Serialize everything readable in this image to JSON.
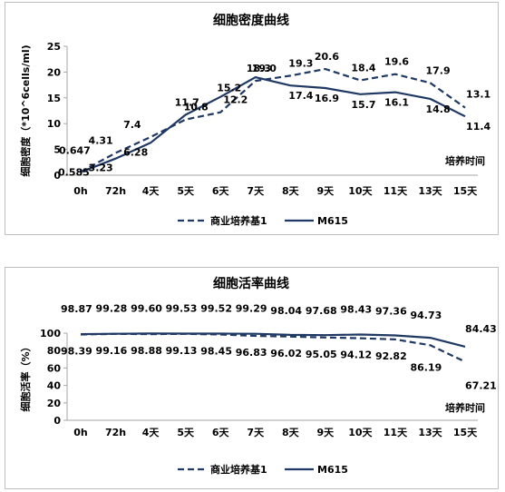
{
  "chart_data": [
    {
      "type": "line",
      "title": "细胞密度曲线",
      "ylabel": "细胞密度（*10^6cells/ml)",
      "xlabel": "培养时间",
      "categories": [
        "0h",
        "72h",
        "4天",
        "5天",
        "6天",
        "7天",
        "8天",
        "9天",
        "10天",
        "11天",
        "13天",
        "15天"
      ],
      "ylim": [
        0,
        25
      ],
      "yticks": [
        0,
        5,
        10,
        15,
        20,
        25
      ],
      "grid": false,
      "legend": "bottom",
      "series": [
        {
          "name": "商业培养基1",
          "style": "dashed",
          "values": [
            0.647,
            4.31,
            7.4,
            10.8,
            12.2,
            18.3,
            19.3,
            20.6,
            18.4,
            19.6,
            17.9,
            13.1
          ],
          "labels": [
            "0.647",
            "4.31",
            "7.4",
            "10.8",
            "12.2",
            "18.3",
            "19.3",
            "20.6",
            "18.4",
            "19.6",
            "17.9",
            "13.1"
          ]
        },
        {
          "name": "M615",
          "style": "solid",
          "values": [
            0.585,
            3.23,
            6.28,
            11.7,
            15.2,
            19.0,
            17.4,
            16.9,
            15.7,
            16.1,
            14.8,
            11.4
          ],
          "labels": [
            "0.585",
            "3.23",
            "6.28",
            "11.7",
            "15.2",
            "19.0",
            "17.4",
            "16.9",
            "15.7",
            "16.1",
            "14.8",
            "11.4"
          ]
        }
      ],
      "line_color": "#1f3864"
    },
    {
      "type": "line",
      "title": "细胞活率曲线",
      "ylabel": "细胞活率（%）",
      "xlabel": "培养时间",
      "categories": [
        "0h",
        "72h",
        "4天",
        "5天",
        "6天",
        "7天",
        "8天",
        "9天",
        "10天",
        "11天",
        "13天",
        "15天"
      ],
      "ylim": [
        0,
        100
      ],
      "yticks": [
        0,
        20,
        40,
        60,
        80,
        100
      ],
      "grid": false,
      "legend": "bottom",
      "series": [
        {
          "name": "商业培养基1",
          "style": "dashed",
          "values": [
            98.39,
            99.16,
            98.88,
            99.13,
            98.45,
            96.83,
            96.02,
            95.05,
            94.12,
            92.82,
            86.19,
            67.21
          ],
          "labels": [
            "98.39",
            "99.16",
            "98.88",
            "99.13",
            "98.45",
            "96.83",
            "96.02",
            "95.05",
            "94.12",
            "92.82",
            "86.19",
            "67.21"
          ]
        },
        {
          "name": "M615",
          "style": "solid",
          "values": [
            98.87,
            99.28,
            99.6,
            99.53,
            99.52,
            99.29,
            98.04,
            97.68,
            98.43,
            97.36,
            94.73,
            84.43
          ],
          "labels": [
            "98.87",
            "99.28",
            "99.60",
            "99.53",
            "99.52",
            "99.29",
            "98.04",
            "97.68",
            "98.43",
            "97.36",
            "94.73",
            "84.43"
          ]
        }
      ],
      "line_color": "#1f3864"
    }
  ]
}
